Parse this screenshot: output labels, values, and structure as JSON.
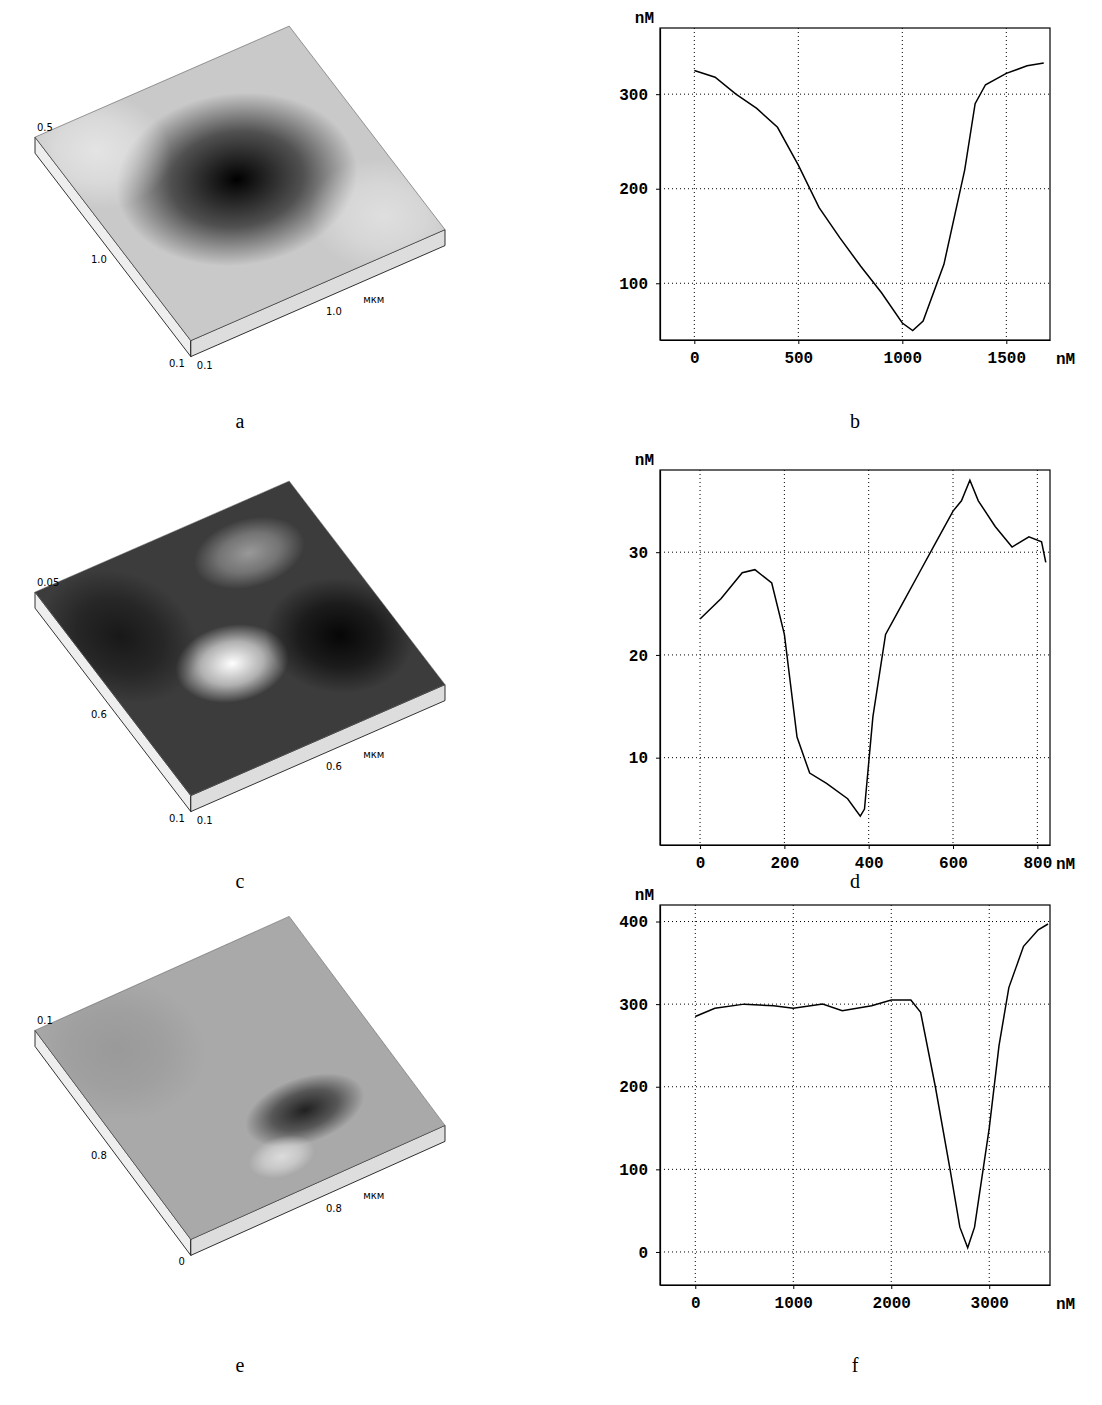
{
  "chart_data": [
    {
      "type": "surface",
      "panel_label": "a",
      "z_tick_label": "0.5",
      "y_tick_label": "1.0",
      "x_tick_label": "1.0",
      "origin_labels": [
        "0.1",
        "0.1"
      ],
      "unit": "мкм"
    },
    {
      "type": "line",
      "panel_label": "b",
      "y_label": "nM",
      "x_label": "nM",
      "color": "#000000",
      "grid": true,
      "x": [
        0,
        100,
        200,
        300,
        400,
        500,
        600,
        700,
        800,
        900,
        1000,
        1050,
        1100,
        1200,
        1300,
        1350,
        1400,
        1500,
        1600,
        1680
      ],
      "values": [
        325,
        318,
        300,
        285,
        265,
        225,
        180,
        148,
        118,
        90,
        58,
        50,
        60,
        120,
        220,
        290,
        310,
        322,
        330,
        333
      ],
      "xlim": [
        -165,
        1710
      ],
      "ylim": [
        40,
        370
      ],
      "xticks": [
        0,
        500,
        1000,
        1500
      ],
      "yticks": [
        100,
        200,
        300
      ]
    },
    {
      "type": "surface",
      "panel_label": "c",
      "z_tick_label": "0.05",
      "y_tick_label": "0.6",
      "x_tick_label": "0.6",
      "origin_labels": [
        "0.1",
        "0.1"
      ],
      "unit": "мкм"
    },
    {
      "type": "line",
      "panel_label": "d",
      "y_label": "nM",
      "x_label": "nM",
      "color": "#000000",
      "grid": true,
      "x": [
        0,
        50,
        100,
        130,
        170,
        200,
        230,
        260,
        300,
        350,
        380,
        390,
        410,
        440,
        480,
        520,
        560,
        600,
        620,
        640,
        660,
        700,
        740,
        780,
        810,
        820
      ],
      "values": [
        23.5,
        25.5,
        28,
        28.3,
        27,
        22,
        12,
        8.5,
        7.5,
        6,
        4.3,
        5,
        14,
        22,
        25,
        28,
        31,
        34,
        35,
        37,
        35,
        32.5,
        30.5,
        31.5,
        31,
        29
      ],
      "xlim": [
        -95,
        830
      ],
      "ylim": [
        1.5,
        38
      ],
      "xticks": [
        0,
        200,
        400,
        600,
        800
      ],
      "yticks": [
        10,
        20,
        30
      ]
    },
    {
      "type": "surface",
      "panel_label": "e",
      "z_tick_label": "0.1",
      "y_tick_label": "0.8",
      "x_tick_label": "0.8",
      "origin_labels": [
        "0"
      ],
      "unit": "мкм"
    },
    {
      "type": "line",
      "panel_label": "f",
      "y_label": "nM",
      "x_label": "nM",
      "color": "#000000",
      "grid": true,
      "x": [
        0,
        200,
        500,
        800,
        1000,
        1300,
        1500,
        1800,
        2000,
        2200,
        2300,
        2450,
        2600,
        2700,
        2780,
        2850,
        3000,
        3100,
        3200,
        3350,
        3500,
        3600
      ],
      "values": [
        285,
        295,
        300,
        298,
        295,
        300,
        292,
        298,
        305,
        305,
        290,
        200,
        100,
        30,
        5,
        30,
        150,
        250,
        320,
        370,
        390,
        397
      ],
      "xlim": [
        -360,
        3620
      ],
      "ylim": [
        -40,
        420
      ],
      "xticks": [
        0,
        1000,
        2000,
        3000
      ],
      "yticks": [
        0,
        100,
        200,
        300,
        400
      ]
    }
  ]
}
